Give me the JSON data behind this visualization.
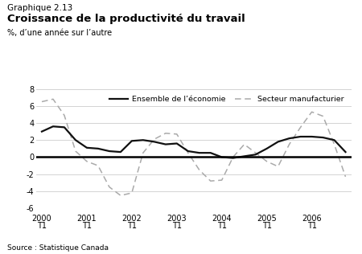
{
  "title_small": "Graphique 2.13",
  "title_large": "Croissance de la productivité du travail",
  "ylabel": "%, d’une année sur l’autre",
  "source": "Source : Statistique Canada",
  "ylim": [
    -6,
    8
  ],
  "yticks": [
    -6,
    -4,
    -2,
    0,
    2,
    4,
    6,
    8
  ],
  "legend_line1": "Ensemble de l’économie",
  "legend_line2": "Secteur manufacturier",
  "economy_color": "#111111",
  "manufacturing_color": "#aaaaaa",
  "economy": [
    3.0,
    3.6,
    3.5,
    2.0,
    1.1,
    1.0,
    0.7,
    0.6,
    1.9,
    2.0,
    1.8,
    1.5,
    1.6,
    0.7,
    0.5,
    0.5,
    0.0,
    -0.1,
    0.1,
    0.3,
    1.0,
    1.8,
    2.2,
    2.4,
    2.4,
    2.3,
    2.0,
    0.6
  ],
  "manufacturing": [
    6.5,
    6.8,
    4.9,
    0.7,
    -0.5,
    -1.0,
    -3.5,
    -4.5,
    -4.2,
    0.5,
    2.1,
    2.8,
    2.7,
    0.5,
    -1.5,
    -2.8,
    -2.7,
    0.0,
    1.5,
    0.5,
    -0.5,
    -1.1,
    1.5,
    3.5,
    5.3,
    4.8,
    1.5,
    -2.3
  ],
  "year_labels": [
    "2000",
    "2001",
    "2002",
    "2003",
    "2004",
    "2005",
    "2006"
  ],
  "year_tick_positions": [
    0,
    4,
    8,
    12,
    16,
    20,
    24
  ]
}
